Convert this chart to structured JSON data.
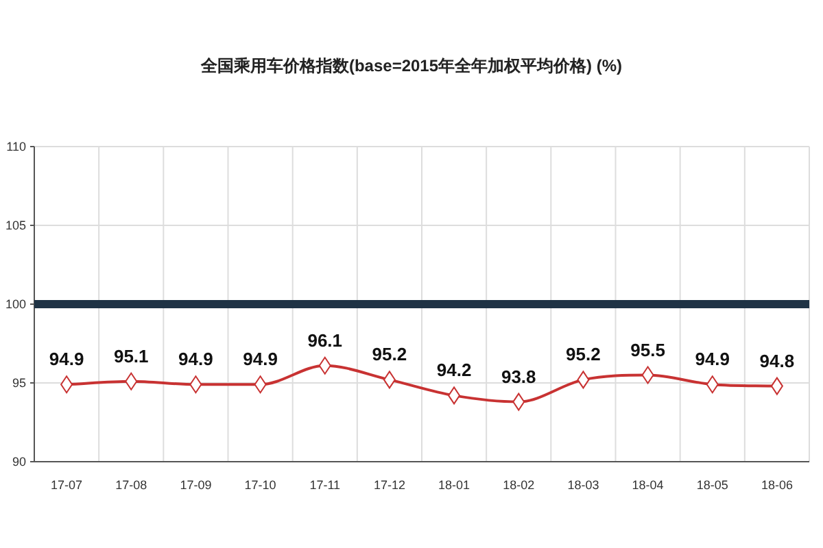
{
  "chart_data": {
    "type": "line",
    "title": "全国乘用车价格指数(base=2015年全年加权平均价格) (%)",
    "categories": [
      "17-07",
      "17-08",
      "17-09",
      "17-10",
      "17-11",
      "17-12",
      "18-01",
      "18-02",
      "18-03",
      "18-04",
      "18-05",
      "18-06"
    ],
    "series": [
      {
        "color": "#c83232",
        "values": [
          94.9,
          95.1,
          94.9,
          94.9,
          96.1,
          95.2,
          94.2,
          93.8,
          95.2,
          95.5,
          94.9,
          94.8
        ]
      }
    ],
    "ylim": [
      90,
      110
    ],
    "yticks": [
      90,
      95,
      100,
      105,
      110
    ],
    "grid": true,
    "marker": "diamond",
    "data_labels": true,
    "ref_lines": [
      {
        "axis": "y",
        "value": 100,
        "color": "#1f3345"
      }
    ]
  }
}
